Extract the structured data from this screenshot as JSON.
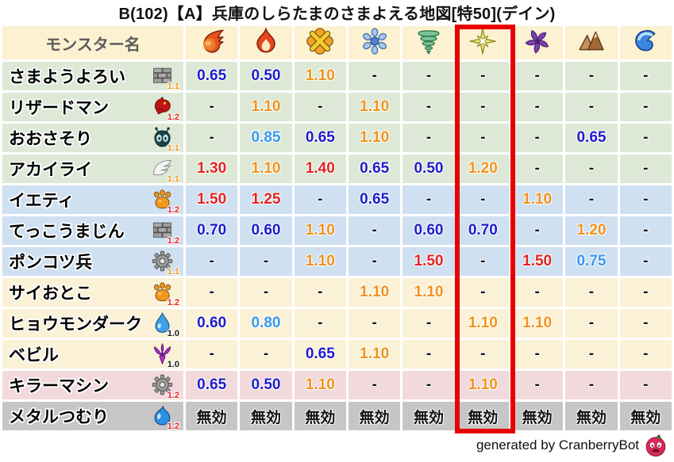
{
  "title": "B(102)【A】兵庫のしらたまのさまよえる地図[特50](デイン)",
  "palette": {
    "strong_resist": "#1c1ccd",
    "resist": "#3898ef",
    "weak": "#f0921d",
    "very_weak": "#e22422",
    "highlight_border": "#e80000",
    "header_bg": "#fcf1d0",
    "header_text": "#5c5c5c",
    "row_green": "#dde9d6",
    "row_blue": "#cfe0f1",
    "row_cream": "#fbf1d6",
    "row_pink": "#f2d9dc",
    "row_gray": "#c6c6c6"
  },
  "chart_data": {
    "type": "table",
    "title": "B(102)【A】兵庫のしらたまのさまよえる地図[特50](デイン)",
    "name_header": "モンスター名",
    "element_columns": [
      {
        "icon": "fireball-icon"
      },
      {
        "icon": "flame-icon"
      },
      {
        "icon": "cross-burst-icon"
      },
      {
        "icon": "snowflake-icon"
      },
      {
        "icon": "tornado-icon"
      },
      {
        "icon": "star-burst-icon",
        "highlighted": true
      },
      {
        "icon": "pinwheel-icon"
      },
      {
        "icon": "mountain-icon"
      },
      {
        "icon": "wave-icon"
      }
    ],
    "highlighted_column_index": 5,
    "immune_label": "無効",
    "rows": [
      {
        "monster": "さまようよろい",
        "type_icon": "brick-icon",
        "level": "1.1",
        "level_color": "orange",
        "group": "green",
        "values": [
          "0.65",
          "0.50",
          "1.10",
          "-",
          "-",
          "-",
          "-",
          "-",
          "-"
        ]
      },
      {
        "monster": "リザードマン",
        "type_icon": "dragon-icon",
        "level": "1.2",
        "level_color": "red",
        "group": "green",
        "values": [
          "-",
          "1.10",
          "-",
          "1.10",
          "-",
          "-",
          "-",
          "-",
          "-"
        ]
      },
      {
        "monster": "おおさそり",
        "type_icon": "bug-icon",
        "level": "1.1",
        "level_color": "orange",
        "group": "green",
        "values": [
          "-",
          "0.85",
          "0.65",
          "1.10",
          "-",
          "-",
          "-",
          "0.65",
          "-"
        ]
      },
      {
        "monster": "アカイライ",
        "type_icon": "wing-icon",
        "level": "1.1",
        "level_color": "orange",
        "group": "green",
        "values": [
          "1.30",
          "1.10",
          "1.40",
          "0.65",
          "0.50",
          "1.20",
          "-",
          "-",
          "-"
        ]
      },
      {
        "monster": "イエティ",
        "type_icon": "paw-icon",
        "level": "1.2",
        "level_color": "red",
        "group": "blue",
        "values": [
          "1.50",
          "1.25",
          "-",
          "0.65",
          "-",
          "-",
          "1.10",
          "-",
          "-"
        ]
      },
      {
        "monster": "てっこうまじん",
        "type_icon": "brick-icon",
        "level": "1.2",
        "level_color": "red",
        "group": "blue",
        "values": [
          "0.70",
          "0.60",
          "1.10",
          "-",
          "0.60",
          "0.70",
          "-",
          "1.20",
          "-"
        ]
      },
      {
        "monster": "ポンコツ兵",
        "type_icon": "gear-icon",
        "level": "1.1",
        "level_color": "orange",
        "group": "blue",
        "values": [
          "-",
          "-",
          "1.10",
          "-",
          "1.50",
          "-",
          "1.50",
          "0.75",
          "-"
        ]
      },
      {
        "monster": "サイおとこ",
        "type_icon": "paw-icon",
        "level": "1.2",
        "level_color": "red",
        "group": "cream",
        "values": [
          "-",
          "-",
          "-",
          "1.10",
          "1.10",
          "-",
          "-",
          "-",
          "-"
        ]
      },
      {
        "monster": "ヒョウモンダーク",
        "type_icon": "waterdrop-icon",
        "level": "1.0",
        "level_color": "black",
        "group": "cream",
        "values": [
          "0.60",
          "0.80",
          "-",
          "-",
          "-",
          "1.10",
          "1.10",
          "-",
          "-"
        ]
      },
      {
        "monster": "ベビル",
        "type_icon": "trident-icon",
        "level": "1.0",
        "level_color": "black",
        "group": "cream",
        "values": [
          "-",
          "-",
          "0.65",
          "1.10",
          "-",
          "-",
          "-",
          "-",
          "-"
        ]
      },
      {
        "monster": "キラーマシン",
        "type_icon": "gear-icon",
        "level": "1.2",
        "level_color": "red",
        "group": "pink",
        "values": [
          "0.65",
          "0.50",
          "1.10",
          "-",
          "-",
          "1.10",
          "-",
          "-",
          "-"
        ]
      },
      {
        "monster": "メタルつむり",
        "type_icon": "slime-icon",
        "level": "1.2",
        "level_color": "red",
        "group": "gray",
        "values": [
          "無効",
          "無効",
          "無効",
          "無効",
          "無効",
          "無効",
          "無効",
          "無効",
          "無効"
        ]
      }
    ]
  },
  "footer": {
    "credit": "generated by CranberryBot",
    "icon": "cranberry-icon"
  }
}
